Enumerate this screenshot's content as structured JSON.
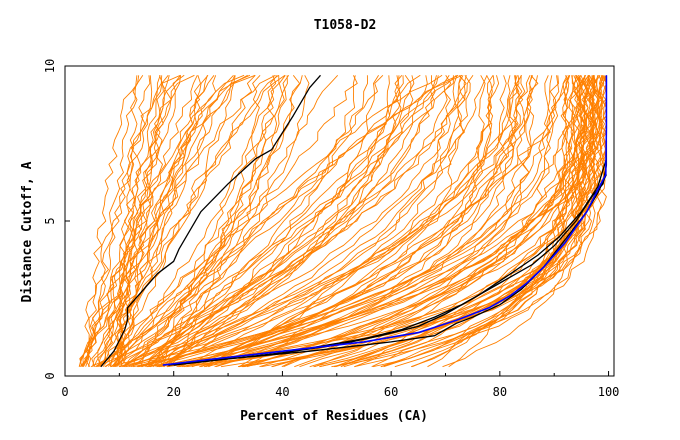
{
  "chart_data": {
    "type": "line",
    "title": "T1058-D2",
    "xlabel": "Percent of Residues (CA)",
    "ylabel": "Distance Cutoff, A",
    "xlim": [
      0,
      101
    ],
    "ylim": [
      0,
      10
    ],
    "x_ticks": [
      "0",
      "20",
      "40",
      "60",
      "80",
      "100"
    ],
    "y_ticks": [
      "0",
      "5",
      "10"
    ],
    "grid": false,
    "legend": "none",
    "colors": {
      "background_models": "#ff8000",
      "highlight_models": "#000000",
      "best_model": "#0000ff"
    },
    "background_series_count": 150,
    "highlight_series": [
      {
        "x": [
          6.6,
          9,
          11,
          11.5,
          11.5,
          12,
          14,
          17,
          20,
          21,
          25,
          30,
          35,
          38,
          42,
          45,
          47
        ],
        "y": [
          0.3,
          0.8,
          1.5,
          1.8,
          2.2,
          2.3,
          2.7,
          3.3,
          3.7,
          4.1,
          5.3,
          6.2,
          7.0,
          7.3,
          8.4,
          9.3,
          9.7
        ]
      },
      {
        "x": [
          19,
          25,
          35,
          45,
          55,
          62,
          68,
          73,
          80,
          86,
          90,
          94,
          97,
          99,
          100,
          100
        ],
        "y": [
          0.35,
          0.5,
          0.7,
          0.9,
          1.2,
          1.5,
          1.9,
          2.3,
          3.0,
          3.6,
          4.2,
          5.0,
          5.8,
          6.2,
          6.8,
          7.6
        ]
      },
      {
        "x": [
          20,
          30,
          40,
          50,
          58,
          65,
          70,
          76,
          82,
          87,
          91,
          95,
          98,
          100
        ],
        "y": [
          0.35,
          0.55,
          0.75,
          1.0,
          1.3,
          1.6,
          2.0,
          2.6,
          3.3,
          3.9,
          4.5,
          5.3,
          6.1,
          7.0
        ]
      },
      {
        "x": [
          19,
          30,
          45,
          60,
          68,
          70,
          72,
          75,
          80,
          84,
          88,
          92,
          96,
          98,
          100
        ],
        "y": [
          0.35,
          0.55,
          0.8,
          1.1,
          1.3,
          1.5,
          1.7,
          1.9,
          2.3,
          2.8,
          3.5,
          4.4,
          5.3,
          5.9,
          6.5
        ]
      }
    ],
    "best_series": {
      "x": [
        18,
        25,
        35,
        45,
        55,
        65,
        72,
        78,
        82,
        85,
        88,
        92,
        96,
        98,
        99.5,
        100,
        100
      ],
      "y": [
        0.35,
        0.5,
        0.7,
        0.9,
        1.1,
        1.4,
        1.8,
        2.2,
        2.6,
        3.0,
        3.5,
        4.3,
        5.3,
        6.0,
        6.5,
        8.0,
        9.7
      ]
    }
  }
}
